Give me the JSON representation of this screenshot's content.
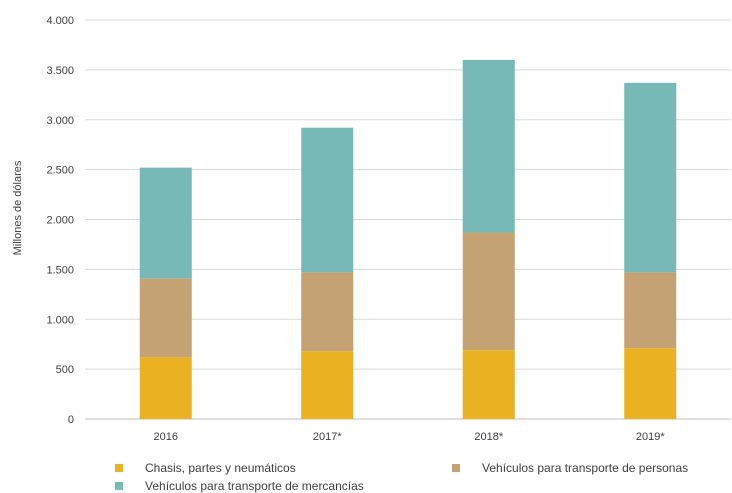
{
  "chart_data": {
    "type": "bar",
    "stacked": true,
    "categories": [
      "2016",
      "2017*",
      "2018*",
      "2019*"
    ],
    "series": [
      {
        "name": "Chasis, partes y neumáticos",
        "values": [
          620,
          680,
          690,
          710
        ],
        "color": "#EAB222"
      },
      {
        "name": "Vehículos para transporte de personas",
        "values": [
          790,
          790,
          1180,
          760
        ],
        "color": "#C4A273"
      },
      {
        "name": "Vehículos para transporte de mercancías",
        "values": [
          1110,
          1450,
          1730,
          1900
        ],
        "color": "#77B9B6"
      }
    ],
    "ylabel": "Millones de dólares",
    "xlabel": "",
    "ylim": [
      0,
      4000
    ],
    "yticks": [
      0,
      500,
      1000,
      1500,
      2000,
      2500,
      3000,
      3500,
      4000
    ],
    "ytick_labels": [
      "0",
      "500",
      "1.000",
      "1.500",
      "2.000",
      "2.500",
      "3.000",
      "3.500",
      "4.000"
    ],
    "grid": true,
    "legend_position": "bottom"
  }
}
